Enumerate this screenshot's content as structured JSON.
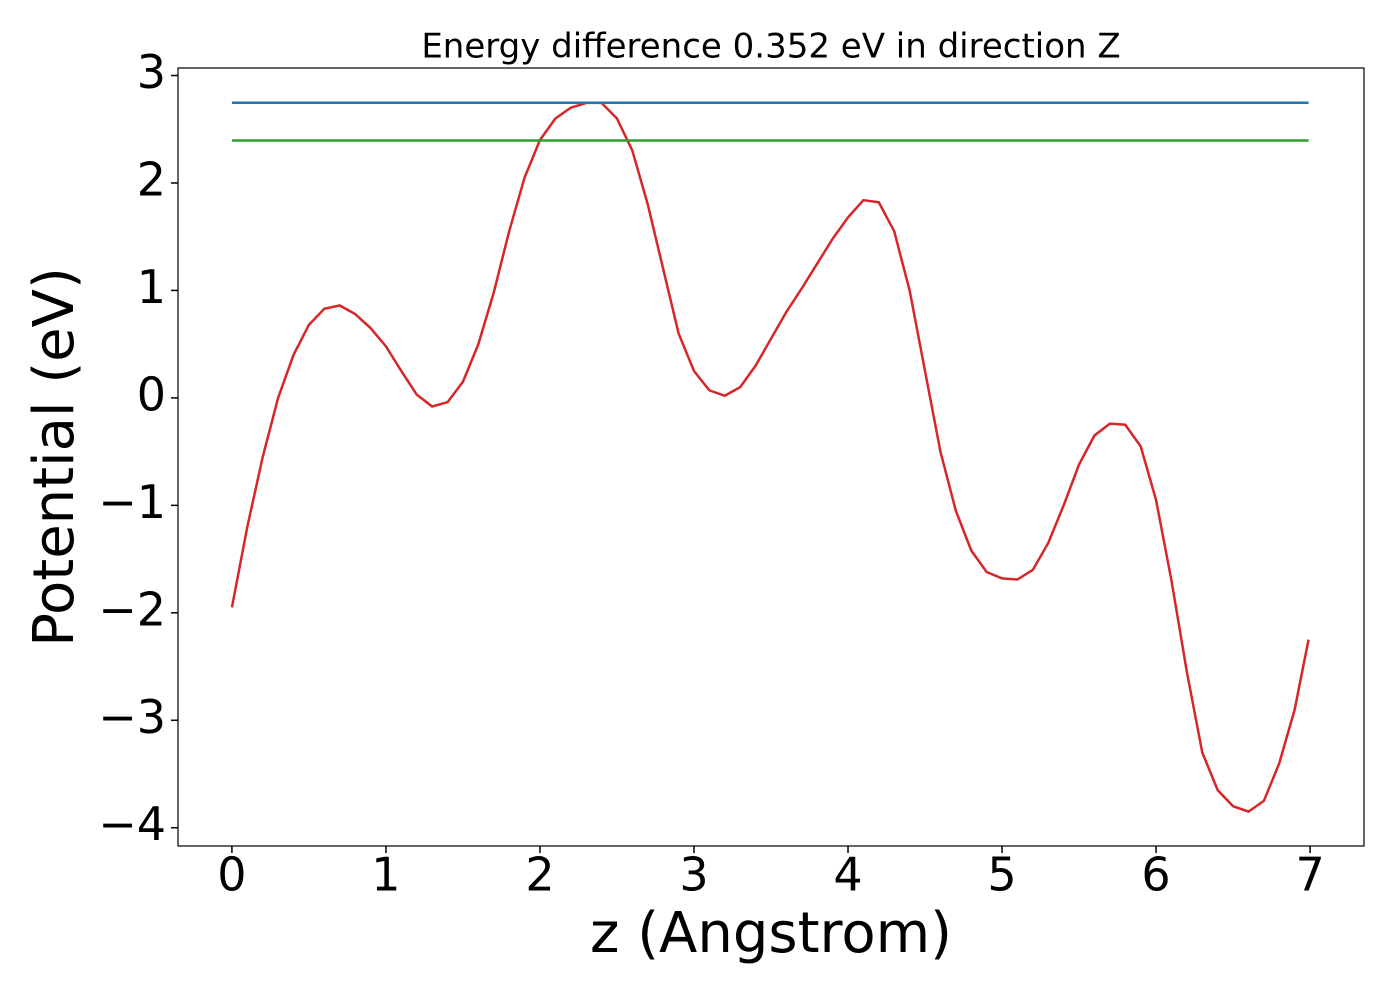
{
  "chart_data": {
    "type": "line",
    "title": "Energy difference 0.352 eV in direction Z",
    "xlabel": "z (Angstrom)",
    "ylabel": "Potential (eV)",
    "xlim": [
      -0.35,
      7.35
    ],
    "ylim": [
      -4.17,
      3.07
    ],
    "xticks": [
      0,
      1,
      2,
      3,
      4,
      5,
      6,
      7
    ],
    "yticks": [
      {
        "value": -4,
        "label": "−4"
      },
      {
        "value": -3,
        "label": "−3"
      },
      {
        "value": -2,
        "label": "−2"
      },
      {
        "value": -1,
        "label": "−1"
      },
      0,
      1,
      2,
      3
    ],
    "series": [
      {
        "color": "#d62728",
        "x": [
          0,
          0.1,
          0.2,
          0.3,
          0.4,
          0.5,
          0.6,
          0.7,
          0.8,
          0.9,
          1.0,
          1.1,
          1.2,
          1.3,
          1.4,
          1.5,
          1.6,
          1.7,
          1.8,
          1.9,
          2.0,
          2.1,
          2.2,
          2.3,
          2.37,
          2.4,
          2.5,
          2.6,
          2.7,
          2.8,
          2.9,
          3.0,
          3.1,
          3.2,
          3.3,
          3.4,
          3.5,
          3.6,
          3.7,
          3.8,
          3.9,
          4.0,
          4.1,
          4.2,
          4.3,
          4.4,
          4.5,
          4.6,
          4.7,
          4.8,
          4.9,
          5.0,
          5.1,
          5.2,
          5.3,
          5.4,
          5.5,
          5.6,
          5.7,
          5.8,
          5.9,
          6.0,
          6.1,
          6.2,
          6.3,
          6.4,
          6.5,
          6.6,
          6.7,
          6.8,
          6.9,
          6.99
        ],
        "values": [
          -1.95,
          -1.2,
          -0.55,
          0.0,
          0.4,
          0.68,
          0.83,
          0.86,
          0.78,
          0.65,
          0.48,
          0.25,
          0.03,
          -0.08,
          -0.04,
          0.15,
          0.5,
          0.98,
          1.55,
          2.05,
          2.4,
          2.6,
          2.7,
          2.745,
          2.747,
          2.745,
          2.6,
          2.3,
          1.8,
          1.2,
          0.6,
          0.25,
          0.07,
          0.02,
          0.1,
          0.3,
          0.55,
          0.8,
          1.02,
          1.25,
          1.48,
          1.68,
          1.84,
          1.82,
          1.55,
          1.0,
          0.25,
          -0.5,
          -1.05,
          -1.42,
          -1.62,
          -1.68,
          -1.69,
          -1.6,
          -1.35,
          -1.0,
          -0.62,
          -0.35,
          -0.24,
          -0.25,
          -0.45,
          -0.95,
          -1.7,
          -2.55,
          -3.3,
          -3.65,
          -3.8,
          -3.85,
          -3.75,
          -3.4,
          -2.9,
          -2.25
        ]
      },
      {
        "color": "#1f77b4",
        "x": [
          0,
          6.99
        ],
        "values": [
          2.747,
          2.747
        ]
      },
      {
        "color": "#2ca02c",
        "x": [
          0,
          6.99
        ],
        "values": [
          2.395,
          2.395
        ]
      }
    ]
  }
}
